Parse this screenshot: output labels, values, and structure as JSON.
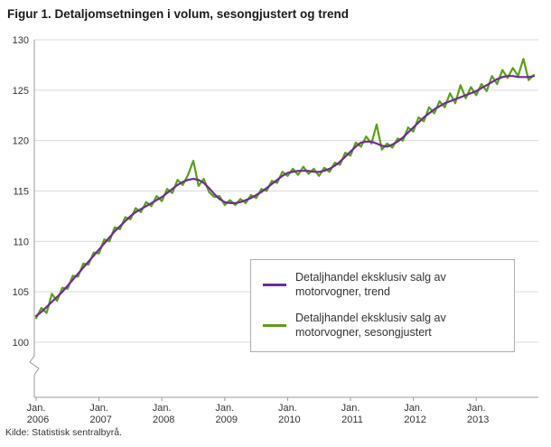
{
  "page": {
    "title": "Figur 1. Detaljomsetningen i volum, sesongjustert og trend",
    "source": "Kilde: Statistisk sentralbyrå."
  },
  "chart_data": {
    "type": "line",
    "title": "Figur 1. Detaljomsetningen i volum, sesongjustert og trend",
    "xlabel": "",
    "ylabel": "",
    "ylim": [
      100,
      130
    ],
    "y_ticks": [
      100,
      105,
      110,
      115,
      120,
      125,
      130
    ],
    "axis_break_below_y": 100,
    "grid": true,
    "legend_position": "center-right",
    "x_range": "Jan 2006 to Dec 2013, monthly",
    "x_tick_labels": [
      {
        "month": "Jan.",
        "year": "2006"
      },
      {
        "month": "Jan.",
        "year": "2007"
      },
      {
        "month": "Jan.",
        "year": "2008"
      },
      {
        "month": "Jan.",
        "year": "2009"
      },
      {
        "month": "Jan.",
        "year": "2010"
      },
      {
        "month": "Jan.",
        "year": "2011"
      },
      {
        "month": "Jan.",
        "year": "2012"
      },
      {
        "month": "Jan.",
        "year": "2013"
      }
    ],
    "series": [
      {
        "name": "Detaljhandel eksklusiv salg av motorvogner, trend",
        "color": "#6e2c91",
        "values": [
          102.6,
          103.0,
          103.5,
          104.0,
          104.5,
          105.0,
          105.6,
          106.2,
          106.8,
          107.4,
          108.0,
          108.6,
          109.2,
          109.8,
          110.4,
          111.0,
          111.5,
          112.0,
          112.5,
          112.9,
          113.2,
          113.5,
          113.8,
          114.1,
          114.4,
          114.8,
          115.2,
          115.6,
          115.9,
          116.1,
          116.2,
          116.1,
          115.8,
          115.3,
          114.7,
          114.2,
          113.9,
          113.8,
          113.8,
          113.9,
          114.1,
          114.3,
          114.6,
          114.9,
          115.3,
          115.7,
          116.1,
          116.5,
          116.8,
          116.9,
          117.0,
          117.0,
          117.0,
          116.9,
          116.9,
          117.0,
          117.2,
          117.5,
          117.9,
          118.4,
          118.9,
          119.4,
          119.8,
          119.9,
          119.9,
          119.7,
          119.5,
          119.4,
          119.6,
          119.9,
          120.3,
          120.8,
          121.3,
          121.8,
          122.3,
          122.7,
          123.1,
          123.4,
          123.7,
          123.9,
          124.1,
          124.3,
          124.5,
          124.7,
          124.9,
          125.2,
          125.5,
          125.8,
          126.1,
          126.3,
          126.4,
          126.4,
          126.3,
          126.3,
          126.3,
          126.4
        ]
      },
      {
        "name": "Detaljhandel eksklusiv salg av motorvogner, sesongjustert",
        "color": "#5a9e1e",
        "values": [
          102.4,
          103.4,
          102.9,
          104.8,
          104.1,
          105.4,
          105.3,
          106.6,
          106.5,
          107.8,
          107.7,
          108.9,
          108.8,
          110.2,
          110.0,
          111.4,
          111.2,
          112.4,
          112.2,
          113.3,
          112.9,
          113.9,
          113.5,
          114.5,
          114.0,
          115.2,
          114.8,
          116.1,
          115.6,
          116.6,
          118.0,
          115.5,
          116.2,
          114.9,
          114.4,
          114.5,
          113.6,
          114.1,
          113.6,
          114.2,
          113.8,
          114.6,
          114.3,
          115.2,
          115.0,
          116.0,
          115.8,
          116.9,
          116.5,
          117.2,
          116.6,
          117.4,
          116.7,
          117.2,
          116.5,
          117.3,
          116.9,
          117.8,
          117.6,
          118.8,
          118.5,
          119.8,
          119.4,
          120.4,
          119.7,
          121.6,
          119.1,
          119.7,
          119.3,
          120.2,
          120.0,
          121.3,
          120.9,
          122.3,
          121.9,
          123.3,
          122.7,
          123.9,
          123.3,
          124.7,
          123.7,
          125.5,
          124.2,
          125.3,
          124.5,
          125.6,
          124.9,
          126.4,
          125.6,
          127.0,
          126.2,
          127.2,
          126.4,
          128.1,
          126.0,
          126.5
        ]
      }
    ]
  }
}
